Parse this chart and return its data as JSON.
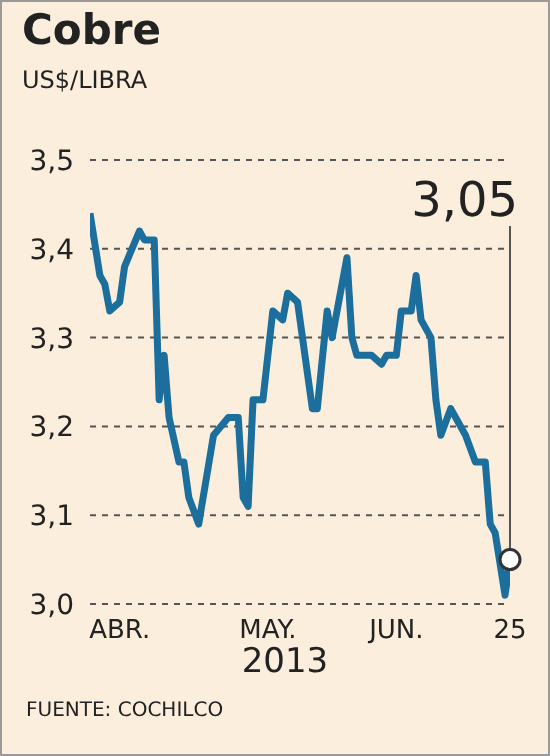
{
  "chart_data": {
    "type": "line",
    "title": "Cobre",
    "subtitle": "US$/LIBRA",
    "xlabel": "2013",
    "x": [
      "2013-04-01",
      "2013-04-03",
      "2013-04-04",
      "2013-04-05",
      "2013-04-07",
      "2013-04-08",
      "2013-04-11",
      "2013-04-12",
      "2013-04-14",
      "2013-04-15",
      "2013-04-16",
      "2013-04-17",
      "2013-04-19",
      "2013-04-20",
      "2013-04-21",
      "2013-04-23",
      "2013-04-26",
      "2013-04-29",
      "2013-05-01",
      "2013-05-02",
      "2013-05-03",
      "2013-05-04",
      "2013-05-06",
      "2013-05-08",
      "2013-05-10",
      "2013-05-11",
      "2013-05-13",
      "2013-05-16",
      "2013-05-17",
      "2013-05-19",
      "2013-05-20",
      "2013-05-21",
      "2013-05-23",
      "2013-05-24",
      "2013-05-25",
      "2013-05-28",
      "2013-05-30",
      "2013-05-31",
      "2013-06-02",
      "2013-06-03",
      "2013-06-05",
      "2013-06-06",
      "2013-06-07",
      "2013-06-09",
      "2013-06-10",
      "2013-06-11",
      "2013-06-13",
      "2013-06-16",
      "2013-06-18",
      "2013-06-20",
      "2013-06-21",
      "2013-06-22",
      "2013-06-24",
      "2013-06-25"
    ],
    "series": [
      {
        "color": "#1c6e9c",
        "values": [
          3.44,
          3.37,
          3.36,
          3.33,
          3.34,
          3.38,
          3.42,
          3.41,
          3.41,
          3.23,
          3.28,
          3.21,
          3.16,
          3.16,
          3.12,
          3.09,
          3.19,
          3.21,
          3.21,
          3.12,
          3.11,
          3.23,
          3.23,
          3.33,
          3.32,
          3.35,
          3.34,
          3.22,
          3.22,
          3.33,
          3.3,
          3.33,
          3.39,
          3.3,
          3.28,
          3.28,
          3.27,
          3.28,
          3.28,
          3.33,
          3.33,
          3.37,
          3.32,
          3.3,
          3.23,
          3.19,
          3.22,
          3.19,
          3.16,
          3.16,
          3.09,
          3.08,
          3.01,
          3.05
        ]
      }
    ],
    "xlim": [
      "2013-04-01",
      "2013-06-25"
    ],
    "xticks": [
      {
        "value": "2013-04-07",
        "label": "ABR."
      },
      {
        "value": "2013-05-07",
        "label": "MAY."
      },
      {
        "value": "2013-06-02",
        "label": "JUN."
      },
      {
        "value": "2013-06-25",
        "label": "25"
      }
    ],
    "ylim": [
      3.0,
      3.5
    ],
    "yticks": [
      {
        "value": 3.0,
        "label": "3,0"
      },
      {
        "value": 3.1,
        "label": "3,1"
      },
      {
        "value": 3.2,
        "label": "3,2"
      },
      {
        "value": 3.3,
        "label": "3,3"
      },
      {
        "value": 3.4,
        "label": "3,4"
      },
      {
        "value": 3.5,
        "label": "3,5"
      }
    ],
    "grid": "y",
    "marker": "none",
    "line_style": "solid",
    "annotations": [
      "3,05",
      "FUENTE: COCHILCO"
    ]
  }
}
